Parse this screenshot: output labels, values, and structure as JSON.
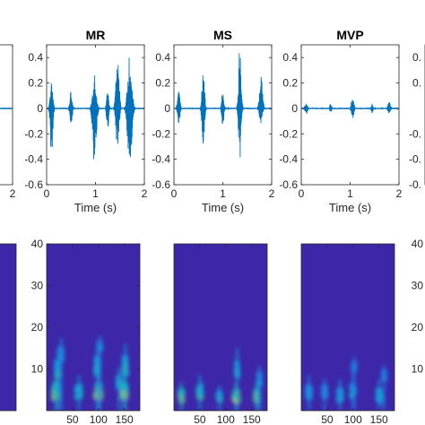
{
  "colors": {
    "waveform": "#0072BD",
    "spectrogram_background": "#3D26A8",
    "axis": "#262626"
  },
  "chart_data": [
    {
      "panel": "waveform-partial-left",
      "type": "line",
      "xlabel": "",
      "xlim": [
        0,
        2
      ],
      "ylim": [
        -0.6,
        0.5
      ],
      "x_ticks": [
        2
      ],
      "y_ticks": [],
      "series": [
        {
          "signal": "flat",
          "level": 0
        }
      ]
    },
    {
      "panel": "waveform-MR",
      "type": "line",
      "title": "MR",
      "xlabel": "Time (s)",
      "xlim": [
        0,
        2
      ],
      "ylim": [
        -0.6,
        0.5
      ],
      "x_ticks": [
        0,
        1,
        2
      ],
      "y_ticks": [
        0.4,
        0.2,
        0,
        -0.2,
        -0.4,
        -0.6
      ],
      "series": [
        {
          "bursts": [
            {
              "t": 0.1,
              "amp": 0.22,
              "neg": 0.38,
              "width": 0.05
            },
            {
              "t": 0.5,
              "amp": 0.14,
              "neg": 0.12,
              "width": 0.05
            },
            {
              "t": 0.98,
              "amp": 0.26,
              "neg": 0.45,
              "width": 0.07
            },
            {
              "t": 1.25,
              "amp": 0.16,
              "neg": 0.2,
              "width": 0.04
            },
            {
              "t": 1.45,
              "amp": 0.46,
              "neg": 0.32,
              "width": 0.06
            },
            {
              "t": 1.7,
              "amp": 0.45,
              "neg": 0.49,
              "width": 0.08
            }
          ]
        }
      ]
    },
    {
      "panel": "waveform-MS",
      "type": "line",
      "title": "MS",
      "xlabel": "Time (s)",
      "xlim": [
        0,
        2
      ],
      "ylim": [
        -0.6,
        0.5
      ],
      "x_ticks": [
        0,
        1,
        2
      ],
      "y_ticks": [
        0.4,
        0.2,
        0,
        -0.2,
        -0.4,
        -0.6
      ],
      "series": [
        {
          "bursts": [
            {
              "t": 0.1,
              "amp": 0.14,
              "neg": 0.12,
              "width": 0.05
            },
            {
              "t": 0.6,
              "amp": 0.3,
              "neg": 0.3,
              "width": 0.05
            },
            {
              "t": 1.0,
              "amp": 0.15,
              "neg": 0.16,
              "width": 0.04
            },
            {
              "t": 1.35,
              "amp": 0.53,
              "neg": 0.4,
              "width": 0.05
            },
            {
              "t": 1.78,
              "amp": 0.27,
              "neg": 0.13,
              "width": 0.06
            }
          ]
        }
      ]
    },
    {
      "panel": "waveform-MVP",
      "type": "line",
      "title": "MVP",
      "xlabel": "Time (s)",
      "xlim": [
        0,
        2
      ],
      "ylim": [
        -0.6,
        0.5
      ],
      "x_ticks": [
        0,
        1,
        2
      ],
      "y_ticks": [
        0.4,
        0.2,
        0,
        -0.2,
        -0.4,
        -0.6
      ],
      "series": [
        {
          "bursts": [
            {
              "t": 0.1,
              "amp": 0.04,
              "neg": 0.05,
              "width": 0.05
            },
            {
              "t": 0.6,
              "amp": 0.04,
              "neg": 0.04,
              "width": 0.04
            },
            {
              "t": 1.05,
              "amp": 0.1,
              "neg": 0.09,
              "width": 0.05
            },
            {
              "t": 1.45,
              "amp": 0.04,
              "neg": 0.04,
              "width": 0.04
            },
            {
              "t": 1.8,
              "amp": 0.06,
              "neg": 0.05,
              "width": 0.05
            }
          ]
        }
      ]
    },
    {
      "panel": "waveform-partial-right",
      "type": "line",
      "xlim": [
        0,
        2
      ],
      "ylim": [
        -0.6,
        0.5
      ],
      "x_ticks": [],
      "y_ticks": [
        0.4,
        0.2,
        0,
        -0.2,
        -0.4,
        -0.6
      ],
      "y_tick_labels": [
        "0.",
        "0.",
        "",
        "-0.",
        "-0.",
        "-0."
      ]
    },
    {
      "panel": "spectrogram-partial-left",
      "type": "heatmap",
      "xlim": [
        0,
        180
      ],
      "ylim": [
        0,
        40
      ],
      "x_ticks": [],
      "y_ticks": [],
      "y_tick_labels": []
    },
    {
      "panel": "spectrogram-MR",
      "type": "heatmap",
      "xlim": [
        0,
        180
      ],
      "ylim": [
        0,
        40
      ],
      "x_ticks": [
        50,
        100,
        150
      ],
      "y_ticks": [
        10,
        20,
        30,
        40
      ],
      "blobs": [
        {
          "x": 18,
          "y": 4,
          "sx": 6,
          "sy": 3.5,
          "v": 0.85
        },
        {
          "x": 22,
          "y": 9,
          "sx": 4,
          "sy": 4,
          "v": 0.55
        },
        {
          "x": 28,
          "y": 13,
          "sx": 2.5,
          "sy": 3,
          "v": 0.4
        },
        {
          "x": 62,
          "y": 4,
          "sx": 5,
          "sy": 3,
          "v": 0.6
        },
        {
          "x": 100,
          "y": 4,
          "sx": 6,
          "sy": 3.5,
          "v": 0.95
        },
        {
          "x": 98,
          "y": 10,
          "sx": 4,
          "sy": 4,
          "v": 0.55
        },
        {
          "x": 103,
          "y": 15,
          "sx": 2,
          "sy": 2,
          "v": 0.35
        },
        {
          "x": 150,
          "y": 4,
          "sx": 5,
          "sy": 3.5,
          "v": 0.95
        },
        {
          "x": 152,
          "y": 10,
          "sx": 3.5,
          "sy": 4,
          "v": 0.6
        },
        {
          "x": 140,
          "y": 6,
          "sx": 3,
          "sy": 3,
          "v": 0.5
        }
      ]
    },
    {
      "panel": "spectrogram-MS",
      "type": "heatmap",
      "xlim": [
        0,
        180
      ],
      "ylim": [
        0,
        40
      ],
      "x_ticks": [
        50,
        100,
        150
      ],
      "y_ticks": [],
      "blobs": [
        {
          "x": 14,
          "y": 3,
          "sx": 4,
          "sy": 2.5,
          "v": 0.85
        },
        {
          "x": 50,
          "y": 4,
          "sx": 4,
          "sy": 3,
          "v": 0.65
        },
        {
          "x": 88,
          "y": 3,
          "sx": 3,
          "sy": 2,
          "v": 0.55
        },
        {
          "x": 120,
          "y": 3,
          "sx": 5,
          "sy": 2.5,
          "v": 0.95
        },
        {
          "x": 122,
          "y": 9,
          "sx": 2,
          "sy": 4,
          "v": 0.55
        },
        {
          "x": 160,
          "y": 3,
          "sx": 4,
          "sy": 2.5,
          "v": 0.8
        },
        {
          "x": 165,
          "y": 7,
          "sx": 2,
          "sy": 2.5,
          "v": 0.45
        }
      ]
    },
    {
      "panel": "spectrogram-MVP",
      "type": "heatmap",
      "xlim": [
        0,
        180
      ],
      "ylim": [
        0,
        40
      ],
      "x_ticks": [
        50,
        100,
        150
      ],
      "y_ticks": [],
      "blobs": [
        {
          "x": 15,
          "y": 4,
          "sx": 4,
          "sy": 3,
          "v": 0.4
        },
        {
          "x": 45,
          "y": 4,
          "sx": 3,
          "sy": 2.5,
          "v": 0.35
        },
        {
          "x": 75,
          "y": 3,
          "sx": 4,
          "sy": 3,
          "v": 0.5
        },
        {
          "x": 100,
          "y": 4,
          "sx": 4,
          "sy": 3,
          "v": 0.45
        },
        {
          "x": 102,
          "y": 10,
          "sx": 2,
          "sy": 2,
          "v": 0.3
        },
        {
          "x": 150,
          "y": 3,
          "sx": 4,
          "sy": 3,
          "v": 0.5
        },
        {
          "x": 160,
          "y": 8,
          "sx": 2,
          "sy": 2,
          "v": 0.3
        }
      ]
    },
    {
      "panel": "spectrogram-partial-right",
      "type": "heatmap",
      "xlim": [
        0,
        180
      ],
      "ylim": [
        0,
        40
      ],
      "x_ticks": [],
      "y_ticks": [
        10,
        20,
        30,
        40
      ],
      "y_tick_labels": [
        "10",
        "20",
        "30",
        "40"
      ]
    }
  ]
}
